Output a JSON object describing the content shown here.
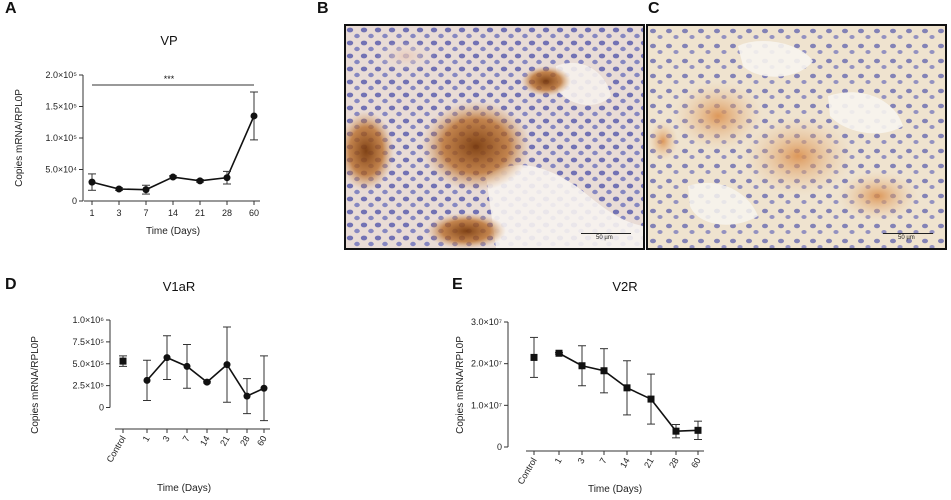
{
  "panels": {
    "a": {
      "letter": "A"
    },
    "b": {
      "letter": "B",
      "scale_label": "50 µm"
    },
    "c": {
      "letter": "C",
      "scale_label": "50 µm"
    },
    "d": {
      "letter": "D"
    },
    "e": {
      "letter": "E"
    }
  },
  "chart_data": [
    {
      "id": "vp",
      "type": "line",
      "title": "VP",
      "xlabel": "Time (Days)",
      "ylabel": "Copies mRNA/RPL0P",
      "categories": [
        "1",
        "3",
        "7",
        "14",
        "21",
        "28",
        "60"
      ],
      "values": [
        30000,
        19000,
        18000,
        38000,
        32000,
        37000,
        135000
      ],
      "errors": [
        13000,
        2000,
        7000,
        2000,
        2000,
        10000,
        38000
      ],
      "yticks": [
        "0",
        "5.0×10⁴",
        "1.0×10⁵",
        "1.5×10⁵",
        "2.0×10⁵"
      ],
      "ytick_values": [
        0,
        50000,
        100000,
        150000,
        200000
      ],
      "ylim": [
        0,
        200000
      ],
      "marker": "circle",
      "significance": "***"
    },
    {
      "id": "v1ar",
      "type": "line",
      "title": "V1aR",
      "xlabel": "Time (Days)",
      "ylabel": "Copies mRNA/RPL0P",
      "categories": [
        "Control",
        "1",
        "3",
        "7",
        "14",
        "21",
        "28",
        "60"
      ],
      "values": [
        530000,
        310000,
        570000,
        470000,
        290000,
        490000,
        130000,
        220000
      ],
      "errors": [
        60000,
        230000,
        250000,
        250000,
        10000,
        430000,
        200000,
        370000
      ],
      "yticks": [
        "0",
        "2.5×10⁵",
        "5.0×10⁵",
        "7.5×10⁵",
        "1.0×10⁶"
      ],
      "ytick_values": [
        0,
        250000,
        500000,
        750000,
        1000000
      ],
      "ylim": [
        -200000,
        1000000
      ],
      "marker": "circle",
      "control_marker": "square"
    },
    {
      "id": "v2r",
      "type": "line",
      "title": "V2R",
      "xlabel": "Time (Days)",
      "ylabel": "Copies mRNA/RPL0P",
      "categories": [
        "Control",
        "1",
        "3",
        "7",
        "14",
        "21",
        "28",
        "60"
      ],
      "values": [
        21500000,
        22500000,
        19500000,
        18300000,
        14200000,
        11500000,
        3800000,
        4000000
      ],
      "errors": [
        4800000,
        200000,
        4800000,
        5300000,
        6500000,
        6000000,
        1600000,
        2200000
      ],
      "yticks": [
        "0",
        "1.0×10⁷",
        "2.0×10⁷",
        "3.0×10⁷"
      ],
      "ytick_values": [
        0,
        10000000,
        20000000,
        30000000
      ],
      "ylim": [
        0,
        30000000
      ],
      "marker": "square",
      "control_marker": "square"
    }
  ]
}
